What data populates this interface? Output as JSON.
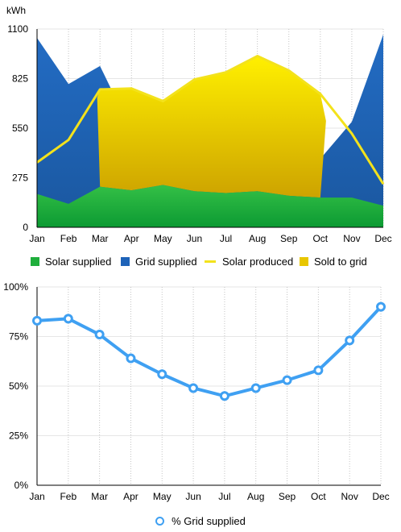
{
  "chart_data": [
    {
      "type": "area",
      "ylabel": "kWh",
      "ylim": [
        0,
        1100
      ],
      "yticks": [
        "0",
        "275",
        "550",
        "825",
        "1100"
      ],
      "grid": true,
      "categories": [
        "Jan",
        "Feb",
        "Mar",
        "Apr",
        "May",
        "Jun",
        "Jul",
        "Aug",
        "Sep",
        "Oct",
        "Nov",
        "Dec"
      ],
      "series": [
        {
          "name": "Solar supplied",
          "color": "#1fae3c",
          "values": [
            185,
            130,
            225,
            205,
            235,
            200,
            190,
            200,
            175,
            165,
            165,
            120
          ]
        },
        {
          "name": "Grid supplied",
          "color": "#1e63b8",
          "values": [
            1050,
            795,
            895,
            535,
            520,
            380,
            330,
            380,
            355,
            380,
            585,
            1070
          ]
        },
        {
          "name": "Solar produced",
          "color": "#f3e21c",
          "values": [
            360,
            485,
            765,
            770,
            700,
            820,
            860,
            950,
            870,
            740,
            520,
            240
          ]
        },
        {
          "name": "Sold to grid",
          "color": "#e8c600",
          "values": [
            0,
            0,
            540,
            565,
            465,
            620,
            670,
            750,
            695,
            575,
            0,
            0
          ]
        }
      ],
      "legend": "bottom"
    },
    {
      "type": "line",
      "ylim": [
        0,
        100
      ],
      "yticks": [
        "0%",
        "25%",
        "50%",
        "75%",
        "100%"
      ],
      "grid": true,
      "categories": [
        "Jan",
        "Feb",
        "Mar",
        "Apr",
        "May",
        "Jun",
        "Jul",
        "Aug",
        "Sep",
        "Oct",
        "Nov",
        "Dec"
      ],
      "series": [
        {
          "name": "% Grid supplied",
          "color": "#3fa0f2",
          "values": [
            83,
            84,
            76,
            64,
            56,
            49,
            45,
            49,
            53,
            58,
            73,
            90
          ]
        }
      ],
      "legend": "bottom"
    }
  ]
}
